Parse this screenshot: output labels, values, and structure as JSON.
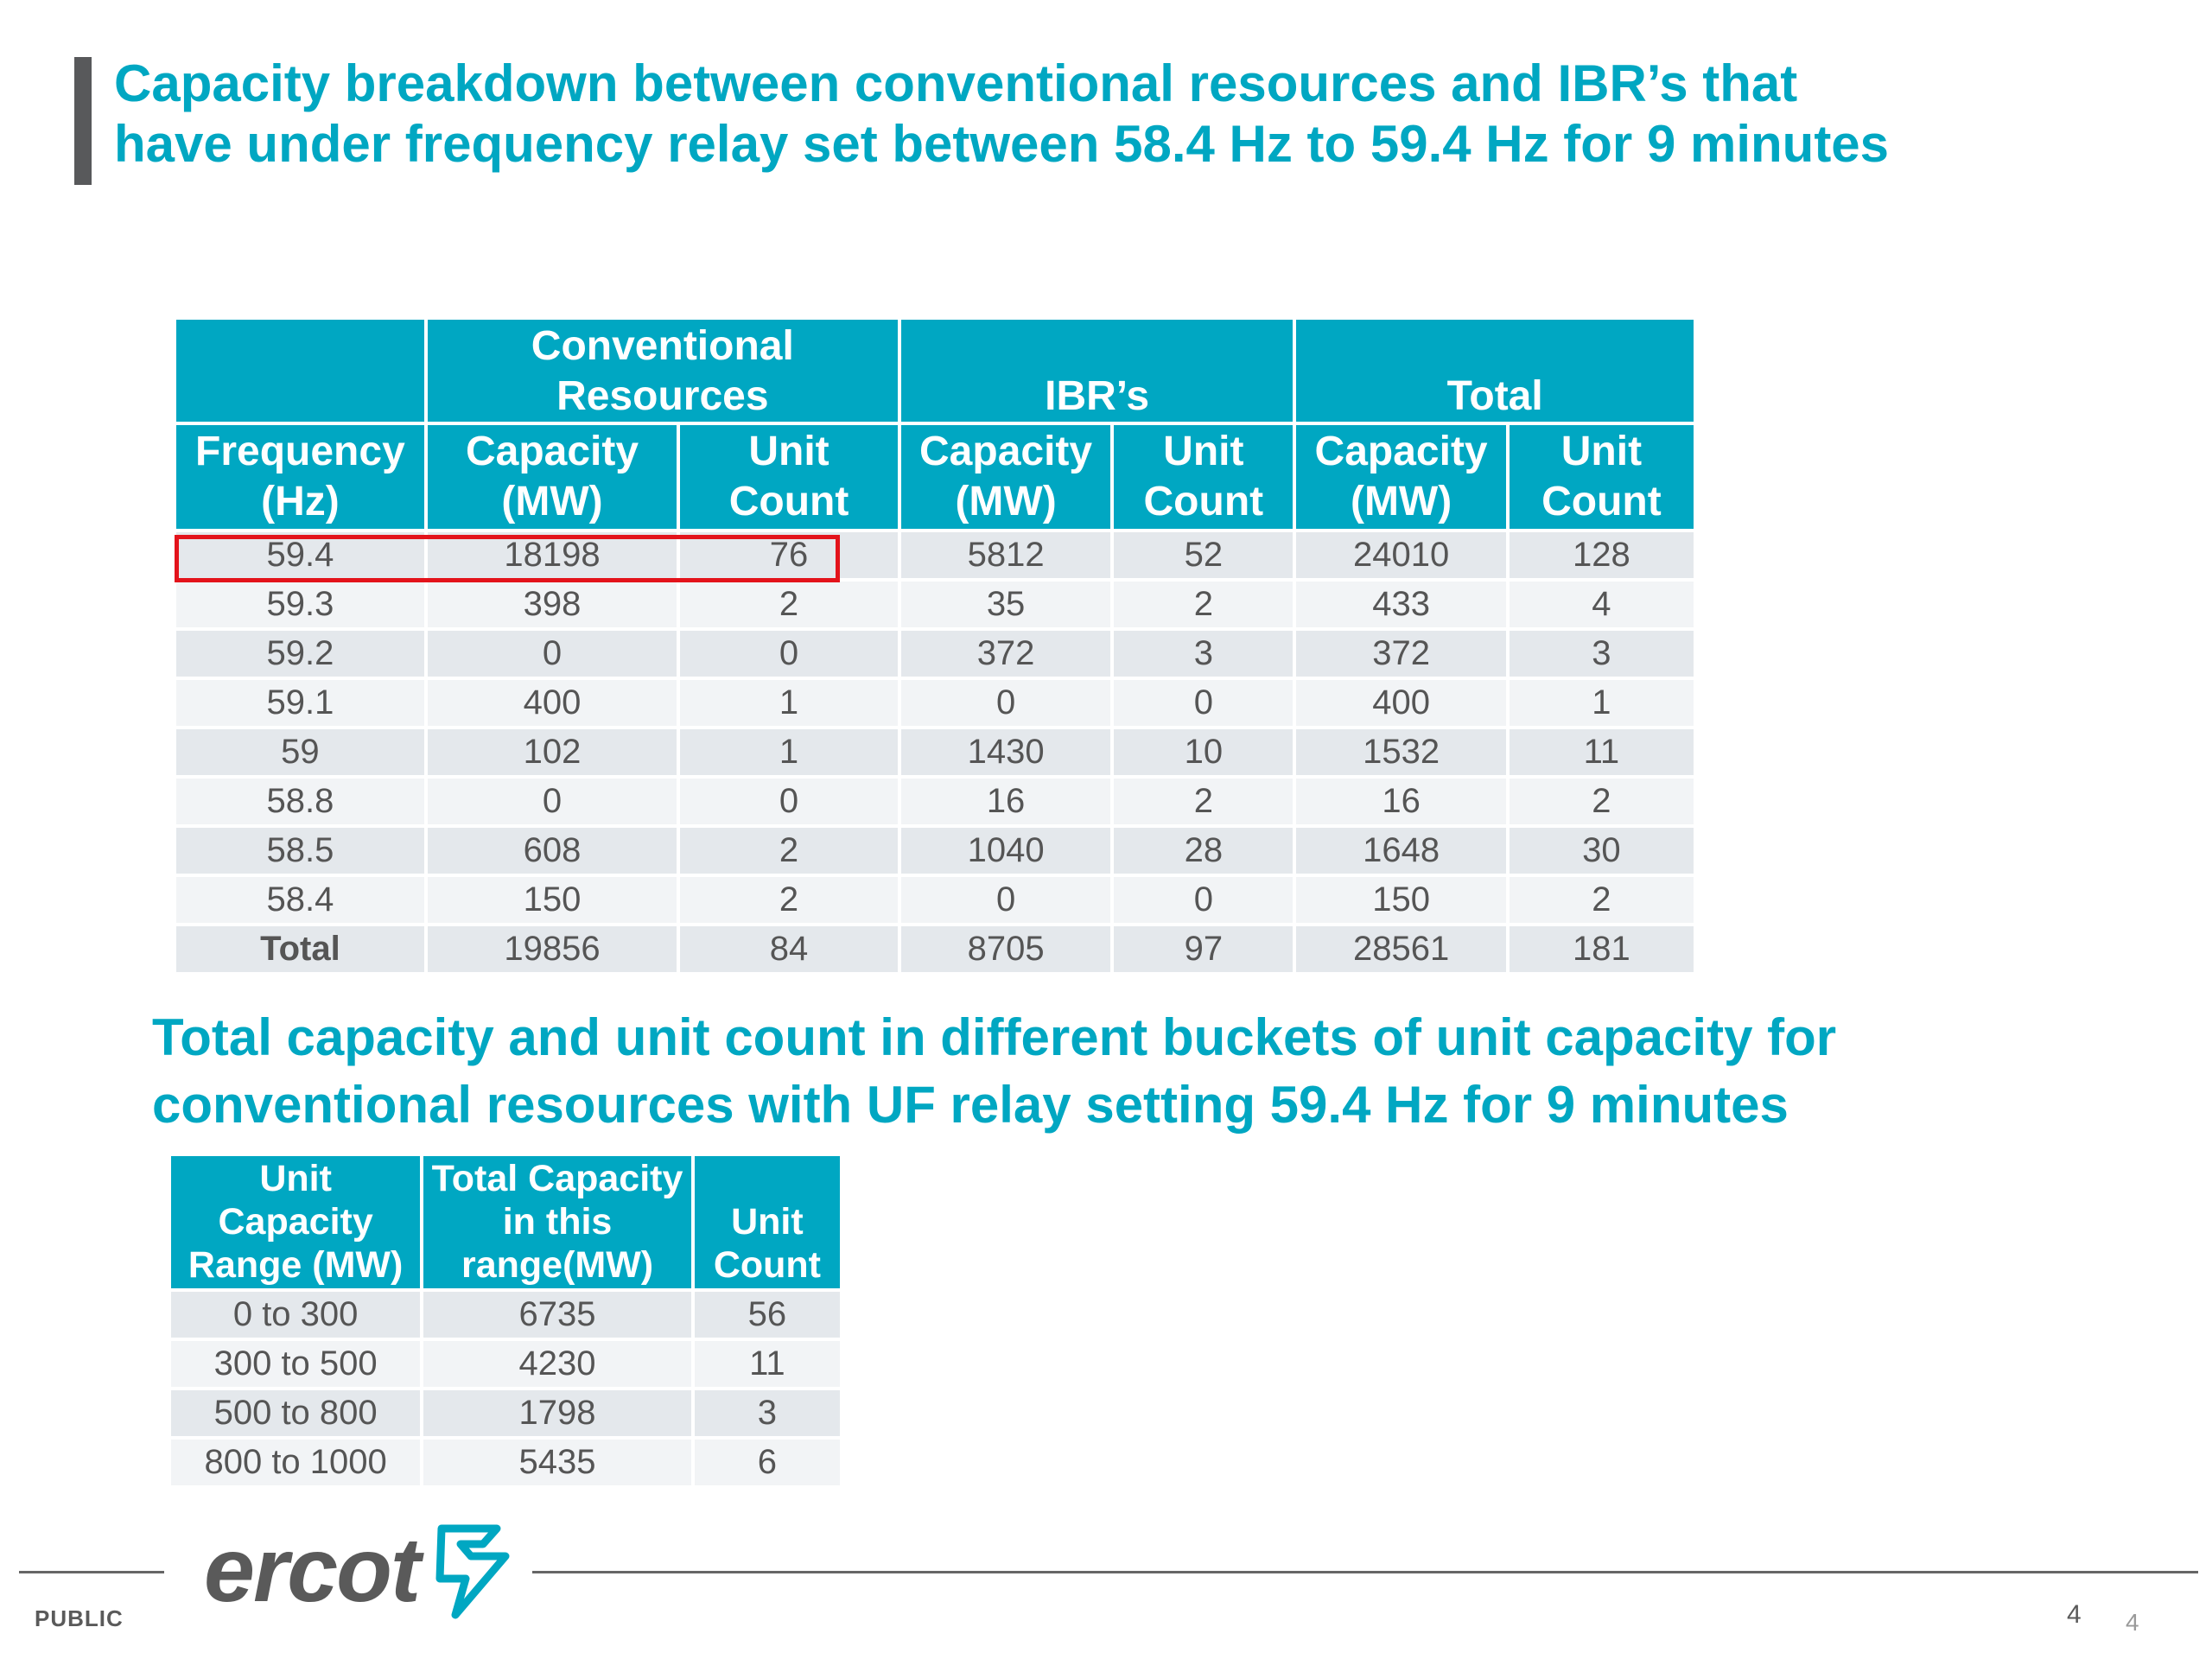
{
  "title": {
    "line1": "Capacity breakdown between conventional resources and IBR’s that",
    "line2": "have under frequency relay set between 58.4 Hz to 59.4 Hz for 9 minutes"
  },
  "table1": {
    "group_headers": [
      "Conventional Resources",
      "IBR’s",
      "Total"
    ],
    "col_headers": {
      "frequency": "Frequency (Hz)",
      "capacity": "Capacity (MW)",
      "unit_count": "Unit Count"
    },
    "rows": [
      [
        "59.4",
        "18198",
        "76",
        "5812",
        "52",
        "24010",
        "128"
      ],
      [
        "59.3",
        "398",
        "2",
        "35",
        "2",
        "433",
        "4"
      ],
      [
        "59.2",
        "0",
        "0",
        "372",
        "3",
        "372",
        "3"
      ],
      [
        "59.1",
        "400",
        "1",
        "0",
        "0",
        "400",
        "1"
      ],
      [
        "59",
        "102",
        "1",
        "1430",
        "10",
        "1532",
        "11"
      ],
      [
        "58.8",
        "0",
        "0",
        "16",
        "2",
        "16",
        "2"
      ],
      [
        "58.5",
        "608",
        "2",
        "1040",
        "28",
        "1648",
        "30"
      ],
      [
        "58.4",
        "150",
        "2",
        "0",
        "0",
        "150",
        "2"
      ],
      [
        "Total",
        "19856",
        "84",
        "8705",
        "97",
        "28561",
        "181"
      ]
    ],
    "highlight_color": "#e3131b"
  },
  "subtitle": {
    "line1": "Total capacity and unit count in different buckets of unit capacity for",
    "line2": "conventional resources with UF relay setting 59.4 Hz for 9 minutes"
  },
  "table2": {
    "headers": [
      "Unit Capacity Range (MW)",
      "Total Capacity in this range(MW)",
      "Unit Count"
    ],
    "rows": [
      [
        "0 to 300",
        "6735",
        "56"
      ],
      [
        "300 to 500",
        "4230",
        "11"
      ],
      [
        "500 to 800",
        "1798",
        "3"
      ],
      [
        "800 to 1000",
        "5435",
        "6"
      ]
    ]
  },
  "footer": {
    "logo": "ercot",
    "classification": "PUBLIC",
    "page_number": "4",
    "page_number_2": "4"
  },
  "colors": {
    "accent": "#00a7c2",
    "text_gray": "#555555",
    "row_light": "#f2f4f6",
    "row_dark": "#e4e8ec"
  }
}
